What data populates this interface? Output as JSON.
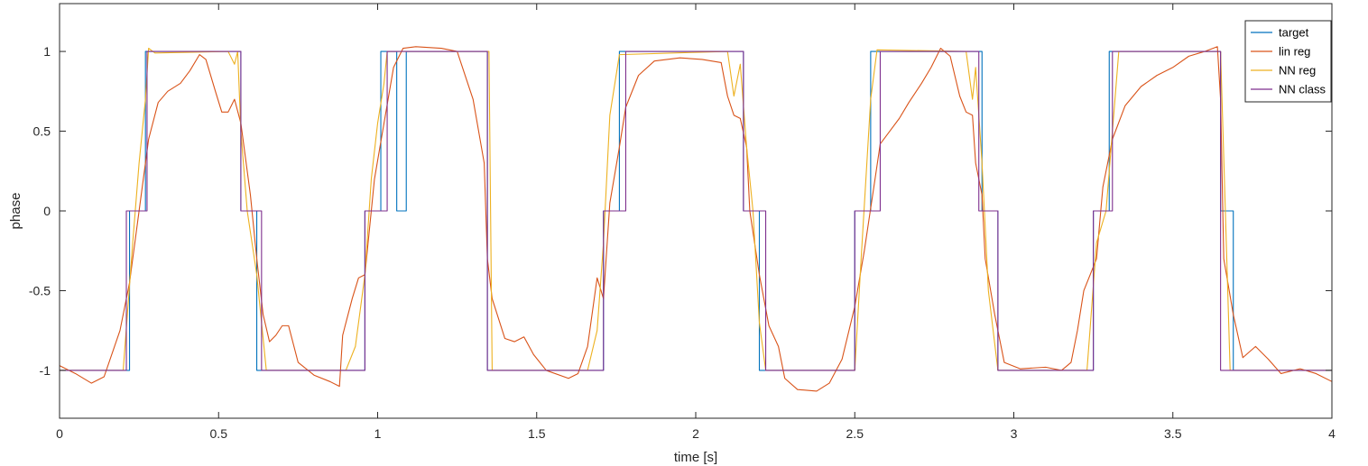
{
  "chart_data": {
    "type": "line",
    "title": "",
    "xlabel": "time [s]",
    "ylabel": "phase",
    "xlim": [
      0,
      4
    ],
    "ylim": [
      -1.3,
      1.3
    ],
    "grid": false,
    "legend_position": "top-right",
    "x_ticks": [
      0,
      0.5,
      1,
      1.5,
      2,
      2.5,
      3,
      3.5,
      4
    ],
    "x_tick_labels": [
      "0",
      "0.5",
      "1",
      "1.5",
      "2",
      "2.5",
      "3",
      "3.5",
      "4"
    ],
    "y_ticks": [
      -1,
      -0.5,
      0,
      0.5,
      1
    ],
    "y_tick_labels": [
      "-1",
      "-0.5",
      "0",
      "0.5",
      "1"
    ],
    "series": [
      {
        "name": "target",
        "color": "#0072BD",
        "points": [
          [
            0,
            -1
          ],
          [
            0.22,
            -1
          ],
          [
            0.22,
            0
          ],
          [
            0.27,
            0
          ],
          [
            0.27,
            1
          ],
          [
            0.57,
            1
          ],
          [
            0.57,
            0
          ],
          [
            0.62,
            0
          ],
          [
            0.62,
            -1
          ],
          [
            0.96,
            -1
          ],
          [
            0.96,
            0
          ],
          [
            1.01,
            0
          ],
          [
            1.01,
            1
          ],
          [
            1.06,
            1
          ],
          [
            1.06,
            0
          ],
          [
            1.09,
            0
          ],
          [
            1.09,
            1
          ],
          [
            1.345,
            1
          ],
          [
            1.345,
            -1
          ],
          [
            1.71,
            -1
          ],
          [
            1.71,
            0
          ],
          [
            1.76,
            0
          ],
          [
            1.76,
            1
          ],
          [
            2.15,
            1
          ],
          [
            2.15,
            0
          ],
          [
            2.2,
            0
          ],
          [
            2.2,
            -1
          ],
          [
            2.5,
            -1
          ],
          [
            2.5,
            0
          ],
          [
            2.55,
            0
          ],
          [
            2.55,
            1
          ],
          [
            2.9,
            1
          ],
          [
            2.9,
            0
          ],
          [
            2.95,
            0
          ],
          [
            2.95,
            -1
          ],
          [
            3.25,
            -1
          ],
          [
            3.25,
            0
          ],
          [
            3.3,
            0
          ],
          [
            3.3,
            1
          ],
          [
            3.65,
            1
          ],
          [
            3.65,
            0
          ],
          [
            3.69,
            0
          ],
          [
            3.69,
            -1
          ],
          [
            4,
            -1
          ]
        ]
      },
      {
        "name": "lin reg",
        "color": "#D95319",
        "points": [
          [
            0,
            -0.97
          ],
          [
            0.05,
            -1.02
          ],
          [
            0.1,
            -1.08
          ],
          [
            0.14,
            -1.04
          ],
          [
            0.19,
            -0.75
          ],
          [
            0.22,
            -0.45
          ],
          [
            0.25,
            0
          ],
          [
            0.28,
            0.45
          ],
          [
            0.31,
            0.68
          ],
          [
            0.34,
            0.75
          ],
          [
            0.38,
            0.8
          ],
          [
            0.41,
            0.88
          ],
          [
            0.44,
            0.98
          ],
          [
            0.46,
            0.95
          ],
          [
            0.49,
            0.75
          ],
          [
            0.51,
            0.62
          ],
          [
            0.53,
            0.62
          ],
          [
            0.55,
            0.7
          ],
          [
            0.57,
            0.55
          ],
          [
            0.6,
            0.1
          ],
          [
            0.62,
            -0.3
          ],
          [
            0.64,
            -0.65
          ],
          [
            0.66,
            -0.82
          ],
          [
            0.68,
            -0.78
          ],
          [
            0.7,
            -0.72
          ],
          [
            0.72,
            -0.72
          ],
          [
            0.75,
            -0.95
          ],
          [
            0.8,
            -1.03
          ],
          [
            0.85,
            -1.07
          ],
          [
            0.88,
            -1.1
          ],
          [
            0.89,
            -0.78
          ],
          [
            0.92,
            -0.55
          ],
          [
            0.94,
            -0.42
          ],
          [
            0.96,
            -0.4
          ],
          [
            0.99,
            0.2
          ],
          [
            1.02,
            0.55
          ],
          [
            1.05,
            0.9
          ],
          [
            1.08,
            1.02
          ],
          [
            1.12,
            1.03
          ],
          [
            1.2,
            1.02
          ],
          [
            1.25,
            1.0
          ],
          [
            1.3,
            0.7
          ],
          [
            1.335,
            0.3
          ],
          [
            1.345,
            -0.3
          ],
          [
            1.36,
            -0.55
          ],
          [
            1.4,
            -0.8
          ],
          [
            1.43,
            -0.82
          ],
          [
            1.46,
            -0.79
          ],
          [
            1.49,
            -0.9
          ],
          [
            1.53,
            -1.0
          ],
          [
            1.6,
            -1.05
          ],
          [
            1.63,
            -1.02
          ],
          [
            1.66,
            -0.85
          ],
          [
            1.69,
            -0.42
          ],
          [
            1.71,
            -0.55
          ],
          [
            1.73,
            0.05
          ],
          [
            1.76,
            0.4
          ],
          [
            1.78,
            0.65
          ],
          [
            1.82,
            0.85
          ],
          [
            1.87,
            0.94
          ],
          [
            1.95,
            0.96
          ],
          [
            2.02,
            0.95
          ],
          [
            2.08,
            0.93
          ],
          [
            2.1,
            0.72
          ],
          [
            2.12,
            0.6
          ],
          [
            2.14,
            0.58
          ],
          [
            2.16,
            0.4
          ],
          [
            2.17,
            0.0
          ],
          [
            2.2,
            -0.4
          ],
          [
            2.23,
            -0.72
          ],
          [
            2.26,
            -0.85
          ],
          [
            2.28,
            -1.05
          ],
          [
            2.32,
            -1.12
          ],
          [
            2.38,
            -1.13
          ],
          [
            2.42,
            -1.08
          ],
          [
            2.46,
            -0.93
          ],
          [
            2.5,
            -0.6
          ],
          [
            2.53,
            -0.25
          ],
          [
            2.56,
            0.15
          ],
          [
            2.58,
            0.42
          ],
          [
            2.61,
            0.5
          ],
          [
            2.64,
            0.58
          ],
          [
            2.67,
            0.68
          ],
          [
            2.71,
            0.8
          ],
          [
            2.74,
            0.9
          ],
          [
            2.77,
            1.02
          ],
          [
            2.8,
            0.97
          ],
          [
            2.83,
            0.72
          ],
          [
            2.85,
            0.62
          ],
          [
            2.87,
            0.6
          ],
          [
            2.88,
            0.3
          ],
          [
            2.9,
            0.1
          ],
          [
            2.91,
            -0.3
          ],
          [
            2.94,
            -0.65
          ],
          [
            2.97,
            -0.95
          ],
          [
            3.02,
            -0.99
          ],
          [
            3.1,
            -0.98
          ],
          [
            3.15,
            -1.0
          ],
          [
            3.18,
            -0.95
          ],
          [
            3.2,
            -0.75
          ],
          [
            3.22,
            -0.5
          ],
          [
            3.24,
            -0.4
          ],
          [
            3.26,
            -0.3
          ],
          [
            3.28,
            0.15
          ],
          [
            3.31,
            0.45
          ],
          [
            3.35,
            0.66
          ],
          [
            3.4,
            0.78
          ],
          [
            3.45,
            0.85
          ],
          [
            3.5,
            0.9
          ],
          [
            3.55,
            0.97
          ],
          [
            3.6,
            1.0
          ],
          [
            3.64,
            1.03
          ],
          [
            3.65,
            0.7
          ],
          [
            3.66,
            -0.3
          ],
          [
            3.69,
            -0.65
          ],
          [
            3.72,
            -0.92
          ],
          [
            3.76,
            -0.85
          ],
          [
            3.8,
            -0.93
          ],
          [
            3.84,
            -1.02
          ],
          [
            3.9,
            -0.99
          ],
          [
            3.95,
            -1.02
          ],
          [
            4,
            -1.07
          ]
        ]
      },
      {
        "name": "NN reg",
        "color": "#EDB120",
        "points": [
          [
            0,
            -1
          ],
          [
            0.2,
            -1
          ],
          [
            0.23,
            -0.2
          ],
          [
            0.25,
            0.3
          ],
          [
            0.27,
            0.7
          ],
          [
            0.28,
            1.02
          ],
          [
            0.3,
            0.99
          ],
          [
            0.53,
            1.0
          ],
          [
            0.55,
            0.92
          ],
          [
            0.56,
            1.0
          ],
          [
            0.57,
            0.5
          ],
          [
            0.59,
            0
          ],
          [
            0.62,
            -0.4
          ],
          [
            0.65,
            -1.0
          ],
          [
            0.9,
            -1
          ],
          [
            0.93,
            -0.85
          ],
          [
            0.96,
            -0.4
          ],
          [
            0.98,
            0.2
          ],
          [
            1.0,
            0.55
          ],
          [
            1.02,
            0.8
          ],
          [
            1.03,
            1.0
          ],
          [
            1.35,
            1.0
          ],
          [
            1.36,
            -1.0
          ],
          [
            1.66,
            -1.0
          ],
          [
            1.69,
            -0.75
          ],
          [
            1.71,
            -0.2
          ],
          [
            1.73,
            0.6
          ],
          [
            1.76,
            0.98
          ],
          [
            2.1,
            1.0
          ],
          [
            2.12,
            0.72
          ],
          [
            2.14,
            0.92
          ],
          [
            2.16,
            0.4
          ],
          [
            2.18,
            0.0
          ],
          [
            2.2,
            -0.7
          ],
          [
            2.22,
            -1.0
          ],
          [
            2.5,
            -1.0
          ],
          [
            2.52,
            -0.3
          ],
          [
            2.55,
            0.7
          ],
          [
            2.57,
            1.01
          ],
          [
            2.85,
            1.0
          ],
          [
            2.87,
            0.7
          ],
          [
            2.88,
            0.9
          ],
          [
            2.9,
            0.3
          ],
          [
            2.92,
            -0.5
          ],
          [
            2.95,
            -1.0
          ],
          [
            3.23,
            -1.0
          ],
          [
            3.26,
            -0.2
          ],
          [
            3.29,
            0.0
          ],
          [
            3.31,
            0.5
          ],
          [
            3.33,
            1.0
          ],
          [
            3.65,
            1.0
          ],
          [
            3.68,
            -1.0
          ],
          [
            4,
            -1
          ]
        ]
      },
      {
        "name": "NN class",
        "color": "#7E2F8E",
        "points": [
          [
            0,
            -1
          ],
          [
            0.21,
            -1
          ],
          [
            0.21,
            0
          ],
          [
            0.275,
            0
          ],
          [
            0.275,
            1
          ],
          [
            0.57,
            1
          ],
          [
            0.57,
            0
          ],
          [
            0.635,
            0
          ],
          [
            0.635,
            -1
          ],
          [
            0.96,
            -1
          ],
          [
            0.96,
            0
          ],
          [
            1.03,
            0
          ],
          [
            1.03,
            1
          ],
          [
            1.345,
            1
          ],
          [
            1.345,
            -1
          ],
          [
            1.71,
            -1
          ],
          [
            1.71,
            0
          ],
          [
            1.78,
            0
          ],
          [
            1.78,
            1
          ],
          [
            2.15,
            1
          ],
          [
            2.15,
            0
          ],
          [
            2.22,
            0
          ],
          [
            2.22,
            -1
          ],
          [
            2.5,
            -1
          ],
          [
            2.5,
            0
          ],
          [
            2.58,
            0
          ],
          [
            2.58,
            1
          ],
          [
            2.89,
            1
          ],
          [
            2.89,
            0
          ],
          [
            2.95,
            0
          ],
          [
            2.95,
            -1
          ],
          [
            3.25,
            -1
          ],
          [
            3.25,
            0
          ],
          [
            3.31,
            0
          ],
          [
            3.31,
            1
          ],
          [
            3.65,
            1
          ],
          [
            3.65,
            -1
          ],
          [
            4,
            -1
          ]
        ]
      }
    ]
  }
}
